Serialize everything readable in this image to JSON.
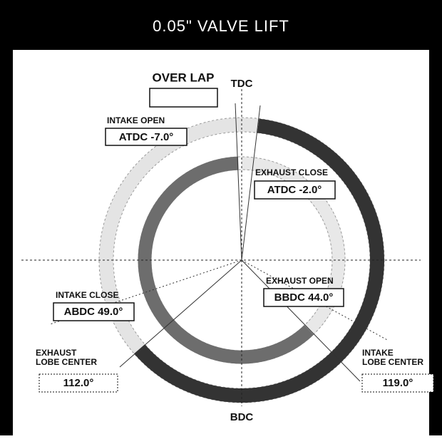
{
  "header": {
    "title": "0.05\" VALVE LIFT"
  },
  "diagram": {
    "overlap": {
      "label": "OVER LAP"
    },
    "tdc": "TDC",
    "bdc": "BDC",
    "intake_open": {
      "label": "INTAKE OPEN",
      "value": "ATDC -7.0°"
    },
    "exhaust_close": {
      "label": "EXHAUST CLOSE",
      "value": "ATDC -2.0°"
    },
    "exhaust_open": {
      "label": "EXHAUST OPEN",
      "value": "BBDC 44.0°"
    },
    "intake_close": {
      "label": "INTAKE CLOSE",
      "value": "ABDC 49.0°"
    },
    "exhaust_lobe_center": {
      "label": [
        "EXHAUST",
        "LOBE CENTER"
      ],
      "value": "112.0°"
    },
    "intake_lobe_center": {
      "label": [
        "INTAKE",
        "LOBE CENTER"
      ],
      "value": "119.0°"
    }
  }
}
